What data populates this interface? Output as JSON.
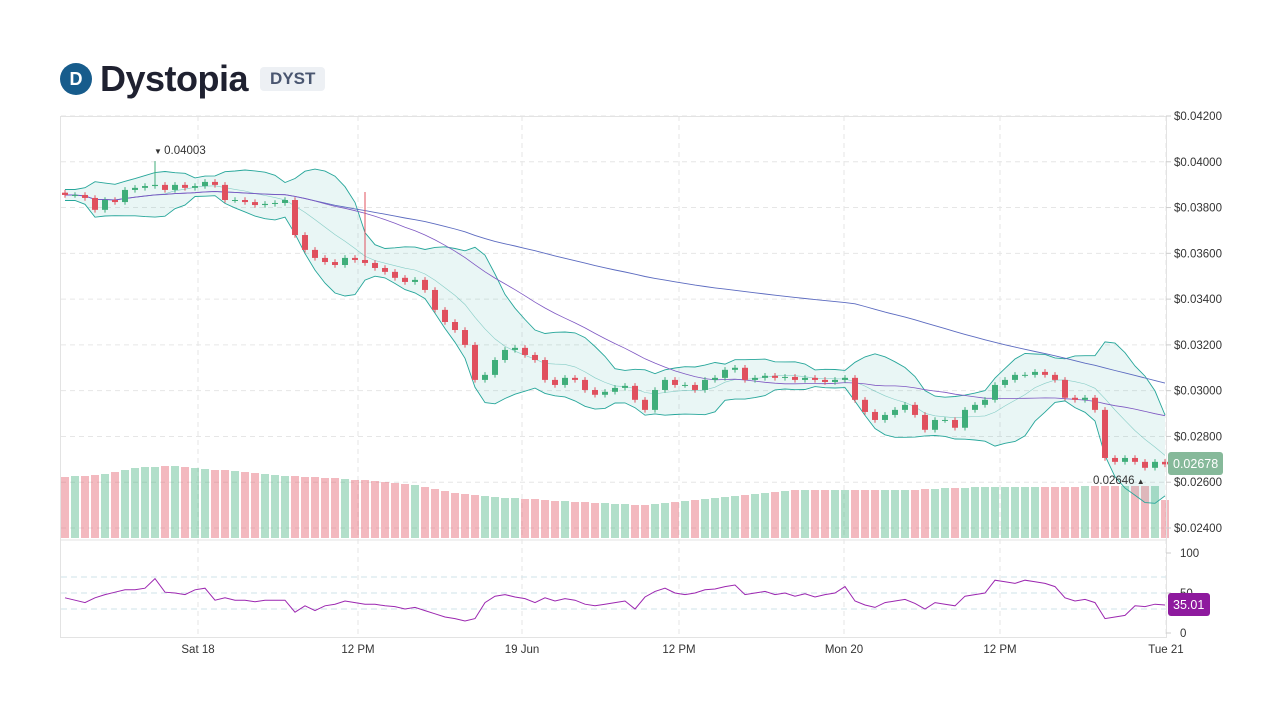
{
  "header": {
    "title": "Dystopia",
    "symbol": "DYST",
    "logo": "dystopia-logo"
  },
  "colors": {
    "up": "#3fae7a",
    "down": "#e0505e",
    "bollinger": "#26a69a",
    "ma_long": "#5c6bc0",
    "ma_short": "#7e57c2",
    "rsi": "#9c27b0",
    "price_label": "#86b99a",
    "rsi_label": "#8e1a9e"
  },
  "chart_data": {
    "type": "candlestick",
    "price_axis": {
      "min": 0.024,
      "max": 0.042,
      "ticks": [
        0.042,
        0.04,
        0.038,
        0.036,
        0.034,
        0.032,
        0.03,
        0.028,
        0.026,
        0.024
      ],
      "tick_labels": [
        "$0.04200",
        "$0.04000",
        "$0.03800",
        "$0.03600",
        "$0.03400",
        "$0.03200",
        "$0.03000",
        "$0.02800",
        "$0.02600",
        "$0.02400"
      ]
    },
    "time_labels": [
      "Sat 18",
      "12 PM",
      "19 Jun",
      "12 PM",
      "Mon 20",
      "12 PM",
      "Tue 21"
    ],
    "close": [
      0.03855,
      0.03855,
      0.03842,
      0.0379,
      0.03833,
      0.03824,
      0.03877,
      0.03886,
      0.03894,
      0.03899,
      0.03877,
      0.03899,
      0.03886,
      0.03894,
      0.03912,
      0.03899,
      0.03833,
      0.03833,
      0.03824,
      0.03811,
      0.03816,
      0.0382,
      0.03833,
      0.0368,
      0.03615,
      0.0358,
      0.03562,
      0.03549,
      0.0358,
      0.03571,
      0.03558,
      0.03536,
      0.03519,
      0.03493,
      0.03475,
      0.03484,
      0.0344,
      0.03353,
      0.033,
      0.03265,
      0.032,
      0.03047,
      0.03069,
      0.03134,
      0.03178,
      0.03187,
      0.03156,
      0.03134,
      0.03047,
      0.03025,
      0.03056,
      0.03047,
      0.03003,
      0.02982,
      0.02995,
      0.03012,
      0.03021,
      0.0296,
      0.02916,
      0.03003,
      0.03047,
      0.03025,
      0.03025,
      0.03003,
      0.03047,
      0.03056,
      0.03091,
      0.031,
      0.03047,
      0.03056,
      0.03065,
      0.03056,
      0.0306,
      0.03047,
      0.03056,
      0.03047,
      0.03038,
      0.03047,
      0.03056,
      0.0296,
      0.02907,
      0.02872,
      0.02894,
      0.02916,
      0.02938,
      0.02894,
      0.02829,
      0.02872,
      0.02872,
      0.02838,
      0.02916,
      0.02938,
      0.0296,
      0.03025,
      0.03047,
      0.03069,
      0.03069,
      0.03082,
      0.03069,
      0.03047,
      0.02969,
      0.0296,
      0.02969,
      0.02916,
      0.02706,
      0.02689,
      0.02706,
      0.02689,
      0.02663,
      0.02689,
      0.02678
    ],
    "volume": [
      61,
      62,
      62,
      63,
      64,
      66,
      68,
      70,
      71,
      71,
      72,
      72,
      71,
      70,
      69,
      68,
      68,
      67,
      66,
      65,
      64,
      63,
      62,
      62,
      61,
      61,
      60,
      60,
      59,
      58,
      58,
      57,
      56,
      55,
      54,
      53,
      51,
      49,
      47,
      45,
      44,
      43,
      42,
      41,
      40,
      40,
      39,
      39,
      38,
      37,
      37,
      36,
      36,
      35,
      35,
      34,
      34,
      33,
      33,
      34,
      35,
      36,
      37,
      38,
      39,
      40,
      41,
      42,
      43,
      44,
      45,
      46,
      47,
      48,
      48,
      48,
      48,
      48,
      48,
      48,
      48,
      48,
      48,
      48,
      48,
      48,
      49,
      49,
      50,
      50,
      50,
      51,
      51,
      51,
      51,
      51,
      51,
      51,
      51,
      51,
      51,
      51,
      52,
      52,
      52,
      52,
      52,
      52,
      52,
      52,
      38
    ],
    "rsi": [
      44,
      41,
      38,
      44,
      48,
      51,
      54,
      54,
      56,
      68,
      51,
      50,
      48,
      54,
      56,
      41,
      44,
      41,
      41,
      39,
      41,
      41,
      41,
      26,
      34,
      28,
      34,
      36,
      40,
      38,
      36,
      36,
      34,
      33,
      30,
      32,
      28,
      24,
      20,
      18,
      15,
      18,
      38,
      46,
      48,
      45,
      43,
      38,
      44,
      40,
      43,
      41,
      36,
      34,
      36,
      38,
      40,
      30,
      45,
      52,
      56,
      50,
      48,
      50,
      54,
      55,
      58,
      60,
      48,
      50,
      52,
      48,
      50,
      46,
      49,
      45,
      48,
      50,
      58,
      40,
      35,
      32,
      38,
      40,
      42,
      37,
      30,
      38,
      36,
      34,
      46,
      48,
      50,
      66,
      64,
      62,
      66,
      64,
      62,
      58,
      44,
      40,
      42,
      38,
      18,
      20,
      22,
      34,
      33,
      36,
      35.01
    ],
    "rsi_axis": {
      "min": 0,
      "max": 100,
      "tick_labels": [
        "100",
        "50",
        "0"
      ],
      "levels": [
        70,
        50,
        30
      ]
    },
    "high_marker": {
      "value": "0.04003"
    },
    "low_marker": {
      "value": "0.02646"
    },
    "last_price": "0.02678",
    "last_rsi": "35.01",
    "indicators": [
      "Bollinger Bands",
      "Moving average (long)",
      "Moving average (short)",
      "Volume",
      "RSI"
    ]
  }
}
